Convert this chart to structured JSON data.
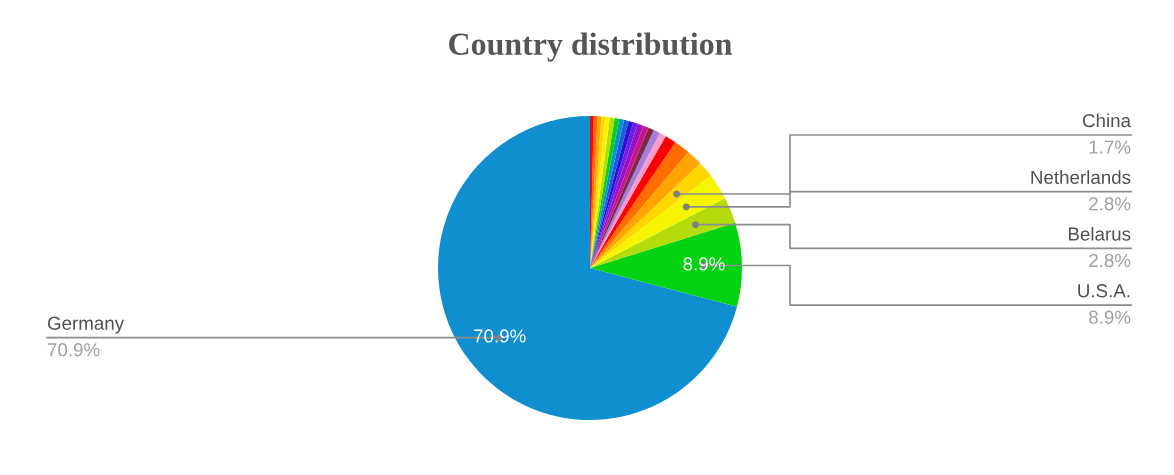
{
  "chart_data": {
    "type": "pie",
    "title": "Country distribution",
    "categories": [
      "Germany",
      "U.S.A.",
      "Belarus",
      "Netherlands",
      "China",
      null,
      null,
      null,
      null,
      null,
      null,
      null,
      null,
      null,
      null,
      null,
      null,
      null,
      null,
      null,
      null,
      null,
      null,
      null
    ],
    "values": [
      70.9,
      8.9,
      2.8,
      2.8,
      1.7,
      1.7,
      1.7,
      1.2,
      0.7,
      0.7,
      0.6,
      0.6,
      0.6,
      0.5,
      0.5,
      0.5,
      0.5,
      0.5,
      0.5,
      0.5,
      0.4,
      0.4,
      0.4,
      0.4
    ],
    "colors": [
      "#0f8fcf",
      "#04d314",
      "#b4dc0c",
      "#f5f500",
      "#fed700",
      "#ffa400",
      "#ff6c00",
      "#ff0000",
      "#fb9bc7",
      "#a07fe0",
      "#7e2a43",
      "#c8168a",
      "#9a10c8",
      "#6c1fe0",
      "#2b10d8",
      "#1a5bd8",
      "#0f8fcf",
      "#04d314",
      "#b4dc0c",
      "#f5f500",
      "#fed700",
      "#ffa400",
      "#ff6c00",
      "#ff0000"
    ],
    "value_labels": [
      "70.9%",
      "8.9%",
      "2.8%",
      "2.8%",
      "1.7%",
      null,
      null,
      null,
      null,
      null,
      null,
      null,
      null,
      null,
      null,
      null,
      null,
      null,
      null,
      null,
      null,
      null,
      null,
      null
    ]
  }
}
